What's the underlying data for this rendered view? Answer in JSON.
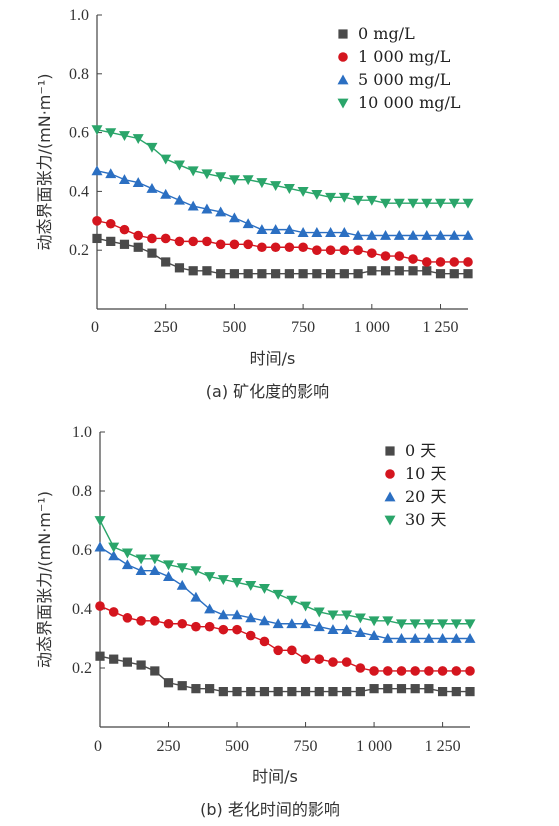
{
  "chart_data": [
    {
      "type": "line",
      "caption": "(a) 矿化度的影响",
      "xlabel": "时间/s",
      "ylabel": "动态界面张力/(mN·m⁻¹)",
      "xlim": [
        0,
        1350
      ],
      "ylim": [
        0,
        1.0
      ],
      "x_ticks": [
        "0",
        "250",
        "500",
        "750",
        "1 000",
        "1 250"
      ],
      "y_ticks": [
        "",
        "0.2",
        "0.4",
        "0.6",
        "0.8",
        "1.0"
      ],
      "legend_position": "top-right",
      "grid": false,
      "x": [
        0,
        50,
        100,
        150,
        200,
        250,
        300,
        350,
        400,
        450,
        500,
        550,
        600,
        650,
        700,
        750,
        800,
        850,
        900,
        950,
        1000,
        1050,
        1100,
        1150,
        1200,
        1250,
        1300,
        1350
      ],
      "series": [
        {
          "name": "0 mg/L",
          "color": "#4a4a4a",
          "marker": "square",
          "values": [
            0.24,
            0.23,
            0.22,
            0.21,
            0.19,
            0.16,
            0.14,
            0.13,
            0.13,
            0.12,
            0.12,
            0.12,
            0.12,
            0.12,
            0.12,
            0.12,
            0.12,
            0.12,
            0.12,
            0.12,
            0.13,
            0.13,
            0.13,
            0.13,
            0.13,
            0.12,
            0.12,
            0.12
          ]
        },
        {
          "name": "1 000 mg/L",
          "color": "#d4151e",
          "marker": "circle",
          "values": [
            0.3,
            0.29,
            0.27,
            0.25,
            0.24,
            0.24,
            0.23,
            0.23,
            0.23,
            0.22,
            0.22,
            0.22,
            0.21,
            0.21,
            0.21,
            0.21,
            0.2,
            0.2,
            0.2,
            0.2,
            0.19,
            0.18,
            0.18,
            0.17,
            0.16,
            0.16,
            0.16,
            0.16
          ]
        },
        {
          "name": "5 000 mg/L",
          "color": "#2b6fc2",
          "marker": "triangle-up",
          "values": [
            0.47,
            0.46,
            0.44,
            0.43,
            0.41,
            0.39,
            0.37,
            0.35,
            0.34,
            0.33,
            0.31,
            0.29,
            0.27,
            0.27,
            0.27,
            0.26,
            0.26,
            0.26,
            0.26,
            0.25,
            0.25,
            0.25,
            0.25,
            0.25,
            0.25,
            0.25,
            0.25,
            0.25
          ]
        },
        {
          "name": "10 000 mg/L",
          "color": "#2aa56a",
          "marker": "triangle-down",
          "values": [
            0.61,
            0.6,
            0.59,
            0.58,
            0.55,
            0.51,
            0.49,
            0.47,
            0.46,
            0.45,
            0.44,
            0.44,
            0.43,
            0.42,
            0.41,
            0.4,
            0.39,
            0.38,
            0.38,
            0.37,
            0.37,
            0.36,
            0.36,
            0.36,
            0.36,
            0.36,
            0.36,
            0.36
          ]
        }
      ]
    },
    {
      "type": "line",
      "caption": "(b) 老化时间的影响",
      "xlabel": "时间/s",
      "ylabel": "动态界面张力/(mN·m⁻¹)",
      "xlim": [
        0,
        1350
      ],
      "ylim": [
        0,
        1.0
      ],
      "x_ticks": [
        "0",
        "250",
        "500",
        "750",
        "1 000",
        "1 250"
      ],
      "y_ticks": [
        "",
        "0.2",
        "0.4",
        "0.6",
        "0.8",
        "1.0"
      ],
      "legend_position": "top-right",
      "grid": false,
      "x": [
        0,
        50,
        100,
        150,
        200,
        250,
        300,
        350,
        400,
        450,
        500,
        550,
        600,
        650,
        700,
        750,
        800,
        850,
        900,
        950,
        1000,
        1050,
        1100,
        1150,
        1200,
        1250,
        1300,
        1350
      ],
      "series": [
        {
          "name": "0 天",
          "color": "#4a4a4a",
          "marker": "square",
          "values": [
            0.24,
            0.23,
            0.22,
            0.21,
            0.19,
            0.15,
            0.14,
            0.13,
            0.13,
            0.12,
            0.12,
            0.12,
            0.12,
            0.12,
            0.12,
            0.12,
            0.12,
            0.12,
            0.12,
            0.12,
            0.13,
            0.13,
            0.13,
            0.13,
            0.13,
            0.12,
            0.12,
            0.12
          ]
        },
        {
          "name": "10 天",
          "color": "#d4151e",
          "marker": "circle",
          "values": [
            0.41,
            0.39,
            0.37,
            0.36,
            0.36,
            0.35,
            0.35,
            0.34,
            0.34,
            0.33,
            0.33,
            0.31,
            0.29,
            0.26,
            0.26,
            0.23,
            0.23,
            0.22,
            0.22,
            0.2,
            0.19,
            0.19,
            0.19,
            0.19,
            0.19,
            0.19,
            0.19,
            0.19
          ]
        },
        {
          "name": "20 天",
          "color": "#2b6fc2",
          "marker": "triangle-up",
          "values": [
            0.61,
            0.58,
            0.55,
            0.53,
            0.53,
            0.51,
            0.48,
            0.44,
            0.4,
            0.38,
            0.38,
            0.37,
            0.36,
            0.35,
            0.35,
            0.35,
            0.34,
            0.33,
            0.33,
            0.32,
            0.31,
            0.3,
            0.3,
            0.3,
            0.3,
            0.3,
            0.3,
            0.3
          ]
        },
        {
          "name": "30 天",
          "color": "#2aa56a",
          "marker": "triangle-down",
          "values": [
            0.7,
            0.61,
            0.59,
            0.57,
            0.57,
            0.55,
            0.54,
            0.53,
            0.51,
            0.5,
            0.49,
            0.48,
            0.47,
            0.45,
            0.43,
            0.41,
            0.39,
            0.38,
            0.38,
            0.37,
            0.36,
            0.36,
            0.35,
            0.35,
            0.35,
            0.35,
            0.35,
            0.35
          ]
        }
      ]
    }
  ]
}
